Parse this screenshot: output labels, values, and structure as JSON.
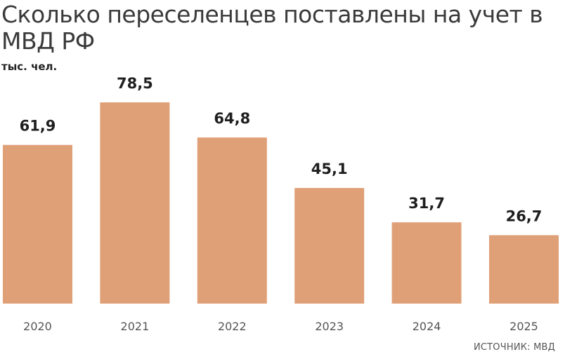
{
  "chart_data": {
    "type": "bar",
    "title": "Сколько переселенцев поставлены на учет в МВД РФ",
    "ylabel": "тыс. чел.",
    "xlabel": "",
    "categories": [
      "2020",
      "2021",
      "2022",
      "2023",
      "2024",
      "2025"
    ],
    "values": [
      61.9,
      78.5,
      64.8,
      45.1,
      31.7,
      26.7
    ],
    "value_labels": [
      "61,9",
      "78,5",
      "64,8",
      "45,1",
      "31,7",
      "26,7"
    ],
    "ylim": [
      0,
      78.5
    ],
    "grid": false,
    "legend": "none",
    "bar_color": "#e0a077"
  },
  "source": "ИСТОЧНИК: МВД"
}
